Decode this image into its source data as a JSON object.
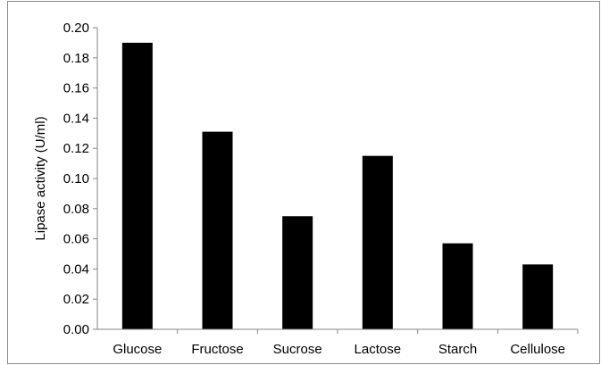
{
  "chart_data": {
    "type": "bar",
    "title": "",
    "xlabel": "",
    "ylabel": "Lipase activity (U/ml)",
    "categories": [
      "Glucose",
      "Fructose",
      "Sucrose",
      "Lactose",
      "Starch",
      "Cellulose"
    ],
    "values": [
      0.19,
      0.131,
      0.075,
      0.115,
      0.057,
      0.043
    ],
    "ylim": [
      0,
      0.2
    ],
    "yticks": [
      "0.00",
      "0.02",
      "0.04",
      "0.06",
      "0.08",
      "0.10",
      "0.12",
      "0.14",
      "0.16",
      "0.18",
      "0.20"
    ],
    "grid": false,
    "legend": "none",
    "bar_color": "#000000",
    "axis_color": "#868686"
  }
}
